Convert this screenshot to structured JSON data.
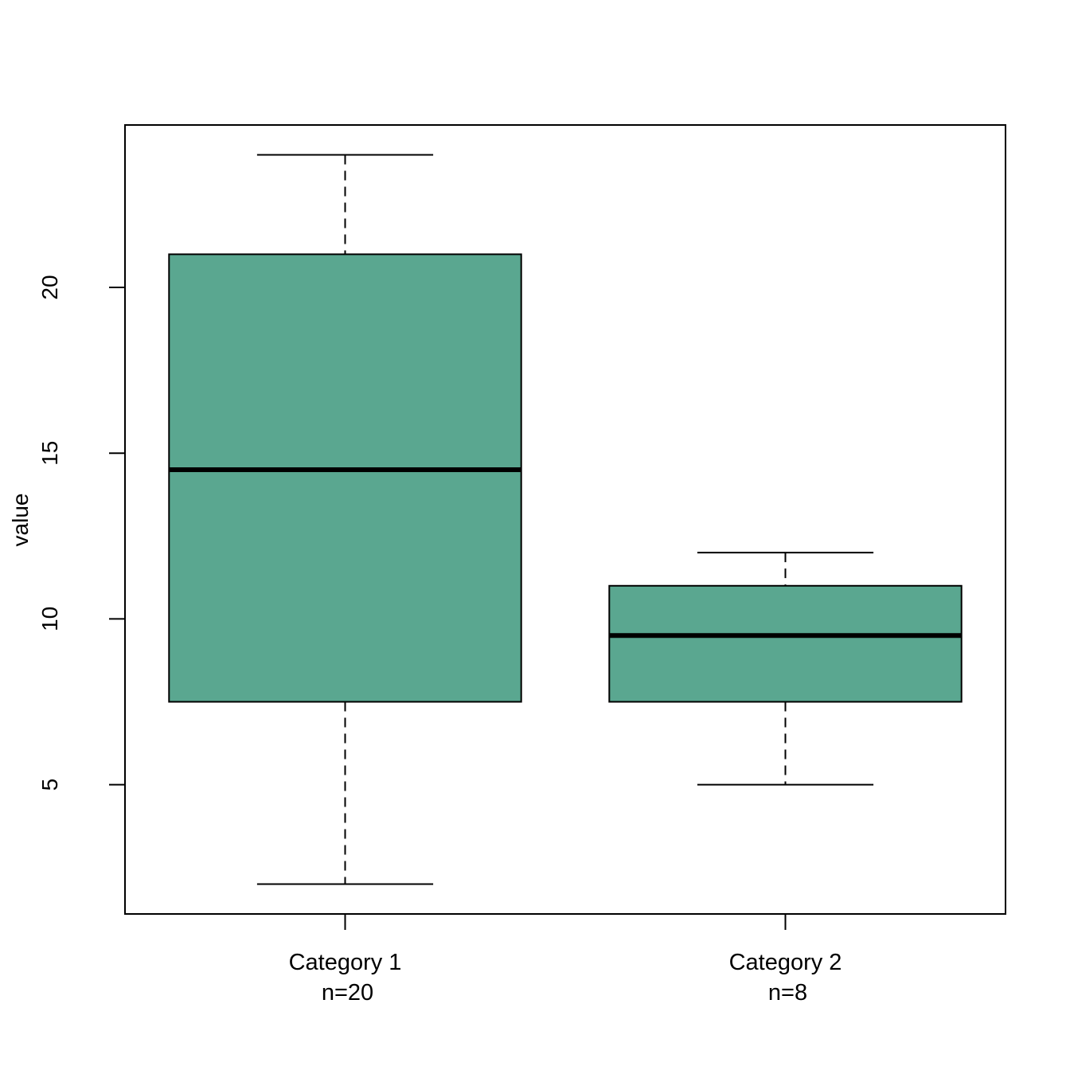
{
  "chart_data": {
    "type": "boxplot",
    "title": "",
    "xlabel": "",
    "ylabel": "value",
    "ylim": [
      1.1,
      24.9
    ],
    "yticks": [
      5,
      10,
      15,
      20
    ],
    "grid": false,
    "box_color": "#5aa790",
    "categories": [
      "Category 1",
      "Category 2"
    ],
    "counts": [
      "n=20",
      "n=8"
    ],
    "boxes": [
      {
        "name": "Category 1",
        "n_label": "n=20",
        "min": 2,
        "q1": 7.5,
        "median": 14.5,
        "q3": 21,
        "max": 24
      },
      {
        "name": "Category 2",
        "n_label": "n=8",
        "min": 5,
        "q1": 7.5,
        "median": 9.5,
        "q3": 11,
        "max": 12
      }
    ]
  }
}
